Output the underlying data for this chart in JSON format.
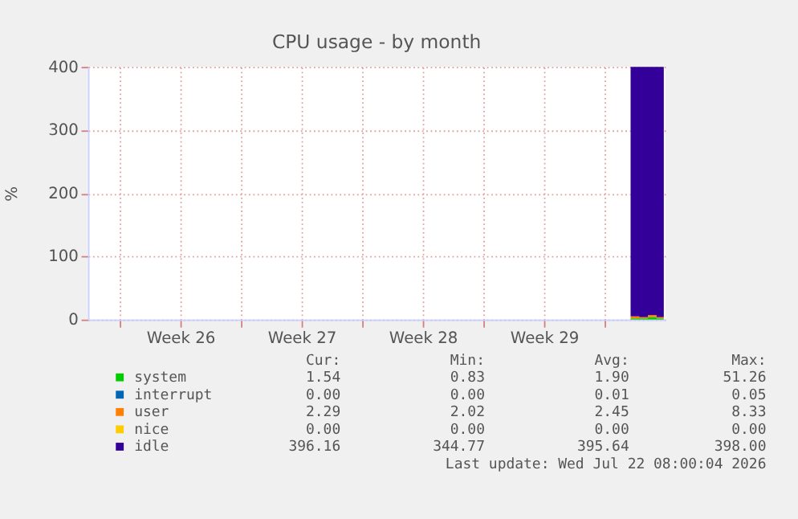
{
  "chart_data": {
    "type": "area",
    "stacked": true,
    "title": "CPU usage - by month",
    "ylabel": "%",
    "x": [
      "2026-07-21T12:00",
      "2026-07-22T00:00",
      "2026-07-22T12:00",
      "2026-07-23T00:00",
      "2026-07-23T10:00"
    ],
    "series": [
      {
        "name": "system",
        "color": "#00cc00",
        "values": [
          2,
          2,
          4,
          2,
          2
        ]
      },
      {
        "name": "interrupt",
        "color": "#0066b3",
        "values": [
          null,
          null,
          null,
          null,
          null
        ]
      },
      {
        "name": "user",
        "color": "#ff8000",
        "values": [
          3,
          2,
          3,
          2,
          2
        ]
      },
      {
        "name": "nice",
        "color": "#ffcc00",
        "values": [
          null,
          null,
          null,
          null,
          null
        ]
      },
      {
        "name": "idle",
        "color": "#330099",
        "values": [
          395,
          396,
          393,
          396,
          396
        ]
      }
    ],
    "xlim": [
      "2026-06-20T04:00",
      "2026-07-23T12:00"
    ],
    "xticks": [
      {
        "value": "2026-06-22",
        "label": null
      },
      {
        "value": "2026-06-25T12:00",
        "label": "Week 26"
      },
      {
        "value": "2026-06-29",
        "label": null
      },
      {
        "value": "2026-07-02T12:00",
        "label": "Week 27"
      },
      {
        "value": "2026-07-06",
        "label": null
      },
      {
        "value": "2026-07-09T12:00",
        "label": "Week 28"
      },
      {
        "value": "2026-07-13",
        "label": null
      },
      {
        "value": "2026-07-16T12:00",
        "label": "Week 29"
      },
      {
        "value": "2026-07-20",
        "label": null
      }
    ],
    "ylim": [
      0,
      400
    ],
    "yticks": [
      0,
      100,
      200,
      300,
      400
    ],
    "grid": true,
    "legend": "bottom",
    "annotations": [
      "Cur:",
      "Min:",
      "Avg:",
      "Max:",
      "1.54",
      "0.83",
      "1.90",
      "51.26",
      "0.00",
      "0.00",
      "0.01",
      "0.05",
      "2.29",
      "2.02",
      "2.45",
      "8.33",
      "0.00",
      "0.00",
      "0.00",
      "0.00",
      "396.16",
      "344.77",
      "395.64",
      "398.00",
      "Last update: Wed Jul 22 08:00:04 2026"
    ]
  }
}
